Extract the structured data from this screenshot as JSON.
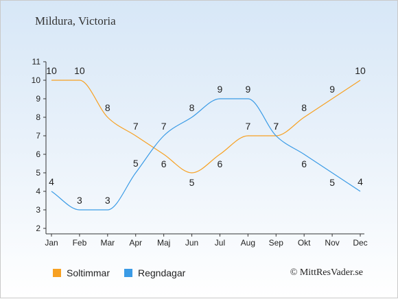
{
  "title": "Mildura, Victoria",
  "copyright": "© MittResVader.se",
  "legend": [
    {
      "label": "Soltimmar",
      "color": "#f7a122"
    },
    {
      "label": "Regndagar",
      "color": "#3a9be6"
    }
  ],
  "chart_data": {
    "type": "line",
    "categories": [
      "Jan",
      "Feb",
      "Mar",
      "Apr",
      "Maj",
      "Jun",
      "Jul",
      "Aug",
      "Sep",
      "Okt",
      "Nov",
      "Dec"
    ],
    "ylim": [
      2,
      11
    ],
    "yticks": [
      2,
      3,
      4,
      5,
      6,
      7,
      8,
      9,
      10,
      11
    ],
    "series": [
      {
        "name": "Soltimmar",
        "color": "#f7a122",
        "values": [
          10,
          10,
          8,
          7,
          6,
          5,
          6,
          7,
          7,
          8,
          9,
          10
        ],
        "label_pos": [
          "above",
          "above",
          "above",
          "above",
          "below",
          "below",
          "below",
          "above",
          "above",
          "above",
          "above",
          "above"
        ]
      },
      {
        "name": "Regndagar",
        "color": "#3a9be6",
        "values": [
          4,
          3,
          3,
          5,
          7,
          8,
          9,
          9,
          7,
          6,
          5,
          4
        ],
        "label_pos": [
          "above",
          "above",
          "above",
          "above",
          "above",
          "above",
          "above",
          "above",
          "above",
          "below",
          "below",
          "above"
        ]
      }
    ],
    "grid": false,
    "legend_position": "bottom-left"
  }
}
